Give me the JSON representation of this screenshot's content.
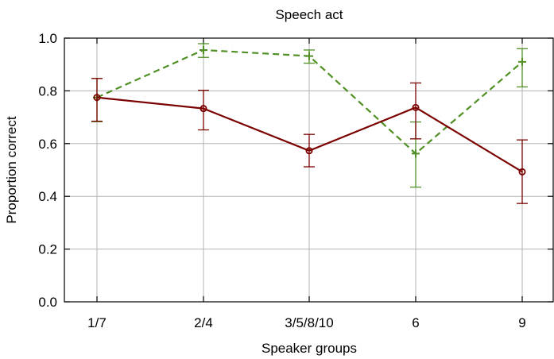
{
  "chart_data": {
    "type": "line",
    "title": "Speech act",
    "xlabel": "Speaker groups",
    "ylabel": "Proportion correct",
    "categories": [
      "1/7",
      "2/4",
      "3/5/8/10",
      "6",
      "9"
    ],
    "ylim": [
      0.0,
      1.0
    ],
    "yticks": [
      "0.0",
      "0.2",
      "0.4",
      "0.6",
      "0.8",
      "1.0"
    ],
    "grid": true,
    "legend": "none",
    "series": [
      {
        "color": "#7b0000",
        "style": "solid",
        "marker": "circle",
        "values": [
          0.775,
          0.733,
          0.573,
          0.737,
          0.493
        ],
        "err_low": [
          0.685,
          0.652,
          0.512,
          0.618,
          0.373
        ],
        "err_high": [
          0.847,
          0.802,
          0.635,
          0.83,
          0.614
        ]
      },
      {
        "color": "#4f8f23",
        "style": "dashed",
        "marker": "plus",
        "values": [
          0.775,
          0.955,
          0.932,
          0.562,
          0.91
        ],
        "err_low": [
          0.683,
          0.927,
          0.905,
          0.435,
          0.815
        ],
        "err_high": [
          0.847,
          0.979,
          0.955,
          0.682,
          0.96
        ]
      }
    ]
  }
}
